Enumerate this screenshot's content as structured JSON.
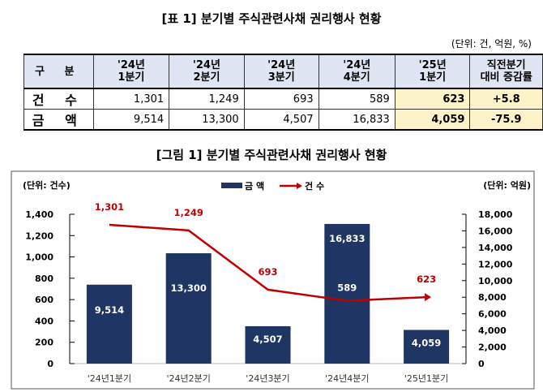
{
  "table": {
    "title": "[표 1] 분기별 주식관련사채 권리행사 현황",
    "unit": "(단위: 건, 억원, %)",
    "headers": [
      [
        "구 분",
        ""
      ],
      [
        "'24년",
        "1분기"
      ],
      [
        "'24년",
        "2분기"
      ],
      [
        "'24년",
        "3분기"
      ],
      [
        "'24년",
        "4분기"
      ],
      [
        "'25년",
        "1분기"
      ],
      [
        "직전분기",
        "대비 증감률"
      ]
    ],
    "rows": [
      {
        "label": "건 수",
        "values": [
          "1,301",
          "1,249",
          "693",
          "589"
        ],
        "current": "623",
        "change": "+5.8"
      },
      {
        "label": "금 액",
        "values": [
          "9,514",
          "13,300",
          "4,507",
          "16,833"
        ],
        "current": "4,059",
        "change": "-75.9"
      }
    ]
  },
  "chart_data": {
    "type": "bar+line",
    "title": "[그림 1] 분기별 주식관련사채 권리행사 현황",
    "categories": [
      "'24년1분기",
      "'24년2분기",
      "'24년3분기",
      "'24년4분기",
      "'25년1분기"
    ],
    "series": [
      {
        "name": "금 액",
        "type": "bar",
        "axis": "right",
        "color": "#1f3564",
        "values": [
          9514,
          13300,
          4507,
          16833,
          4059
        ],
        "labels": [
          "9,514",
          "13,300",
          "4,507",
          "16,833",
          "4,059"
        ]
      },
      {
        "name": "건 수",
        "type": "line",
        "axis": "left",
        "color": "#c00000",
        "values": [
          1301,
          1249,
          693,
          589,
          623
        ],
        "labels": [
          "1,301",
          "1,249",
          "693",
          "589",
          "623"
        ]
      }
    ],
    "left_axis": {
      "label": "(단위: 건수)",
      "range": [
        0,
        1400
      ],
      "ticks": [
        "0",
        "200",
        "400",
        "600",
        "800",
        "1,000",
        "1,200",
        "1,400"
      ]
    },
    "right_axis": {
      "label": "(단위: 억원)",
      "range": [
        0,
        18000
      ],
      "ticks": [
        "0",
        "2,000",
        "4,000",
        "6,000",
        "8,000",
        "10,000",
        "12,000",
        "14,000",
        "16,000",
        "18,000"
      ]
    },
    "legend": "top-center"
  }
}
